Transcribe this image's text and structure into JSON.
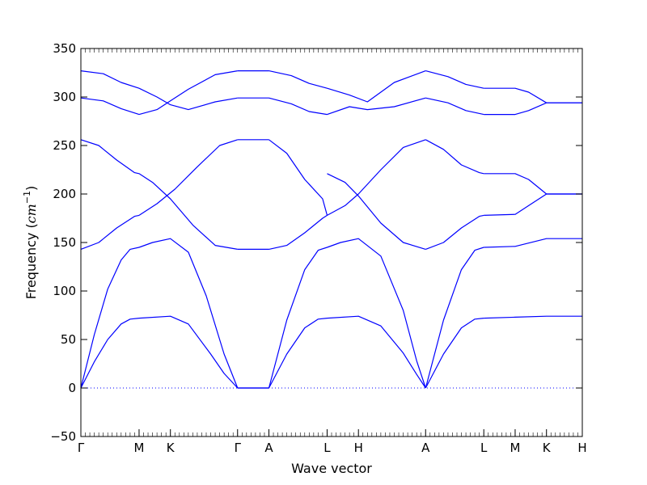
{
  "chart_data": {
    "type": "line",
    "title": "",
    "xlabel": "Wave vector",
    "ylabel": "Frequency",
    "ylabel_unit_base": "cm",
    "ylabel_unit_exp": "−1",
    "ylim": [
      -50,
      350
    ],
    "yticks": [
      "−50",
      "0",
      "50",
      "100",
      "150",
      "200",
      "250",
      "300",
      "350"
    ],
    "ytick_values": [
      -50,
      0,
      50,
      100,
      150,
      200,
      250,
      300,
      350
    ],
    "xlim": [
      0,
      5.6
    ],
    "high_symmetry_points": [
      {
        "label": "Γ",
        "x": 0.0
      },
      {
        "label": "M",
        "x": 0.65
      },
      {
        "label": "K",
        "x": 1.0
      },
      {
        "label": "Γ",
        "x": 1.75
      },
      {
        "label": "A",
        "x": 2.1
      },
      {
        "label": "L",
        "x": 2.75
      },
      {
        "label": "H",
        "x": 3.1
      },
      {
        "label": "A",
        "x": 3.85
      },
      {
        "label": "L",
        "x": 4.5
      },
      {
        "label": "M",
        "x": 4.85
      },
      {
        "label": "K",
        "x": 5.2
      },
      {
        "label": "H",
        "x": 5.6
      }
    ],
    "zero_line": 0,
    "line_color": "#0000ff",
    "series": [
      {
        "segments": [
          {
            "x": [
              0,
              0.15,
              0.3,
              0.45,
              0.55,
              0.65
            ],
            "y": [
              0,
              27,
              50,
              66,
              71,
              72
            ]
          },
          {
            "x": [
              0.65,
              1.0,
              1.2,
              1.45,
              1.6,
              1.75
            ],
            "y": [
              72,
              74,
              66,
              35,
              15,
              0
            ]
          },
          {
            "x": [
              1.75,
              2.1
            ],
            "y": [
              0,
              0
            ]
          },
          {
            "x": [
              2.1,
              2.3,
              2.5,
              2.65,
              2.75
            ],
            "y": [
              0,
              35,
              62,
              71,
              72
            ]
          },
          {
            "x": [
              2.75,
              3.1,
              3.35,
              3.6,
              3.75,
              3.85
            ],
            "y": [
              72,
              74,
              64,
              36,
              14,
              0
            ]
          },
          {
            "x": [
              3.85,
              4.05,
              4.25,
              4.4,
              4.5
            ],
            "y": [
              0,
              35,
              62,
              71,
              72
            ]
          },
          {
            "x": [
              4.5,
              4.85,
              5.2,
              5.6
            ],
            "y": [
              72,
              73,
              74,
              74
            ]
          }
        ]
      },
      {
        "segments": [
          {
            "x": [
              0,
              0.15,
              0.3,
              0.45,
              0.55,
              0.65
            ],
            "y": [
              0,
              55,
              102,
              132,
              143,
              145
            ]
          },
          {
            "x": [
              0.65,
              0.8,
              1.0,
              1.2,
              1.4,
              1.6,
              1.75
            ],
            "y": [
              145,
              150,
              154,
              140,
              95,
              35,
              0
            ]
          },
          {
            "x": [
              1.75,
              2.1
            ],
            "y": [
              0,
              0
            ]
          },
          {
            "x": [
              2.1,
              2.3,
              2.5,
              2.65,
              2.75
            ],
            "y": [
              0,
              70,
              122,
              142,
              145
            ]
          },
          {
            "x": [
              2.75,
              2.9,
              3.1,
              3.35,
              3.6,
              3.75,
              3.85
            ],
            "y": [
              145,
              150,
              154,
              136,
              80,
              28,
              0
            ]
          },
          {
            "x": [
              3.85,
              4.05,
              4.25,
              4.4,
              4.5
            ],
            "y": [
              0,
              70,
              122,
              142,
              145
            ]
          },
          {
            "x": [
              4.5,
              4.85,
              5.2,
              5.6
            ],
            "y": [
              145,
              146,
              154,
              154
            ]
          }
        ]
      },
      {
        "segments": [
          {
            "x": [
              0,
              0.2,
              0.4,
              0.6,
              0.65
            ],
            "y": [
              143,
              150,
              165,
              177,
              178
            ]
          },
          {
            "x": [
              0.65,
              0.85,
              1.05,
              1.3,
              1.55,
              1.75
            ],
            "y": [
              178,
              190,
              205,
              228,
              250,
              256
            ]
          },
          {
            "x": [
              1.75,
              2.1
            ],
            "y": [
              256,
              256
            ]
          },
          {
            "x": [
              2.1,
              2.3,
              2.5,
              2.7,
              2.75
            ],
            "y": [
              256,
              242,
              215,
              195,
              178
            ]
          },
          {
            "x": [
              2.75,
              2.95,
              3.1,
              3.35,
              3.6,
              3.85
            ],
            "y": [
              178,
              188,
              200,
              225,
              248,
              256
            ]
          },
          {
            "x": [
              3.85,
              4.05,
              4.25,
              4.45,
              4.5
            ],
            "y": [
              256,
              246,
              230,
              222,
              221
            ]
          },
          {
            "x": [
              4.5,
              4.85,
              5.0,
              5.2,
              5.6
            ],
            "y": [
              221,
              221,
              215,
              200,
              200
            ]
          }
        ]
      },
      {
        "segments": [
          {
            "x": [
              0,
              0.2,
              0.4,
              0.6,
              0.65
            ],
            "y": [
              256,
              250,
              235,
              222,
              221
            ]
          },
          {
            "x": [
              0.65,
              0.8,
              1.0,
              1.25,
              1.5,
              1.75
            ],
            "y": [
              221,
              212,
              195,
              168,
              147,
              143
            ]
          },
          {
            "x": [
              1.75,
              2.1
            ],
            "y": [
              143,
              143
            ]
          },
          {
            "x": [
              2.1,
              2.3,
              2.5,
              2.7,
              2.75
            ],
            "y": [
              143,
              147,
              160,
              175,
              178
            ]
          },
          {
            "x": [
              2.75,
              2.95,
              3.1,
              3.35,
              3.6,
              3.85
            ],
            "y": [
              221,
              212,
              198,
              170,
              150,
              143
            ]
          },
          {
            "x": [
              3.85,
              4.05,
              4.25,
              4.45,
              4.5
            ],
            "y": [
              143,
              150,
              165,
              177,
              178
            ]
          },
          {
            "x": [
              4.5,
              4.85,
              5.0,
              5.2,
              5.6
            ],
            "y": [
              178,
              179,
              188,
              200,
              200
            ]
          }
        ]
      },
      {
        "segments": [
          {
            "x": [
              0,
              0.25,
              0.45,
              0.65
            ],
            "y": [
              299,
              296,
              288,
              282
            ]
          },
          {
            "x": [
              0.65,
              0.85,
              1.0,
              1.2,
              1.5,
              1.75
            ],
            "y": [
              282,
              287,
              296,
              308,
              323,
              327
            ]
          },
          {
            "x": [
              1.75,
              2.1
            ],
            "y": [
              327,
              327
            ]
          },
          {
            "x": [
              2.1,
              2.35,
              2.55,
              2.75
            ],
            "y": [
              327,
              322,
              314,
              309
            ]
          },
          {
            "x": [
              2.75,
              3.0,
              3.2,
              3.5,
              3.85
            ],
            "y": [
              309,
              302,
              295,
              315,
              327
            ]
          },
          {
            "x": [
              3.85,
              4.1,
              4.3,
              4.5
            ],
            "y": [
              327,
              321,
              313,
              309
            ]
          },
          {
            "x": [
              4.5,
              4.85,
              5.0,
              5.2,
              5.6
            ],
            "y": [
              309,
              309,
              305,
              294,
              294
            ]
          }
        ]
      },
      {
        "segments": [
          {
            "x": [
              0,
              0.25,
              0.45,
              0.65
            ],
            "y": [
              327,
              324,
              315,
              309
            ]
          },
          {
            "x": [
              0.65,
              0.85,
              1.0,
              1.2,
              1.5,
              1.75
            ],
            "y": [
              309,
              300,
              292,
              287,
              295,
              299
            ]
          },
          {
            "x": [
              1.75,
              2.1
            ],
            "y": [
              299,
              299
            ]
          },
          {
            "x": [
              2.1,
              2.35,
              2.55,
              2.75
            ],
            "y": [
              299,
              293,
              285,
              282
            ]
          },
          {
            "x": [
              2.75,
              3.0,
              3.2,
              3.5,
              3.85
            ],
            "y": [
              282,
              290,
              287,
              290,
              299
            ]
          },
          {
            "x": [
              3.85,
              4.1,
              4.3,
              4.5
            ],
            "y": [
              299,
              294,
              286,
              282
            ]
          },
          {
            "x": [
              4.5,
              4.85,
              5.0,
              5.2,
              5.6
            ],
            "y": [
              282,
              282,
              286,
              294,
              294
            ]
          }
        ]
      }
    ]
  }
}
